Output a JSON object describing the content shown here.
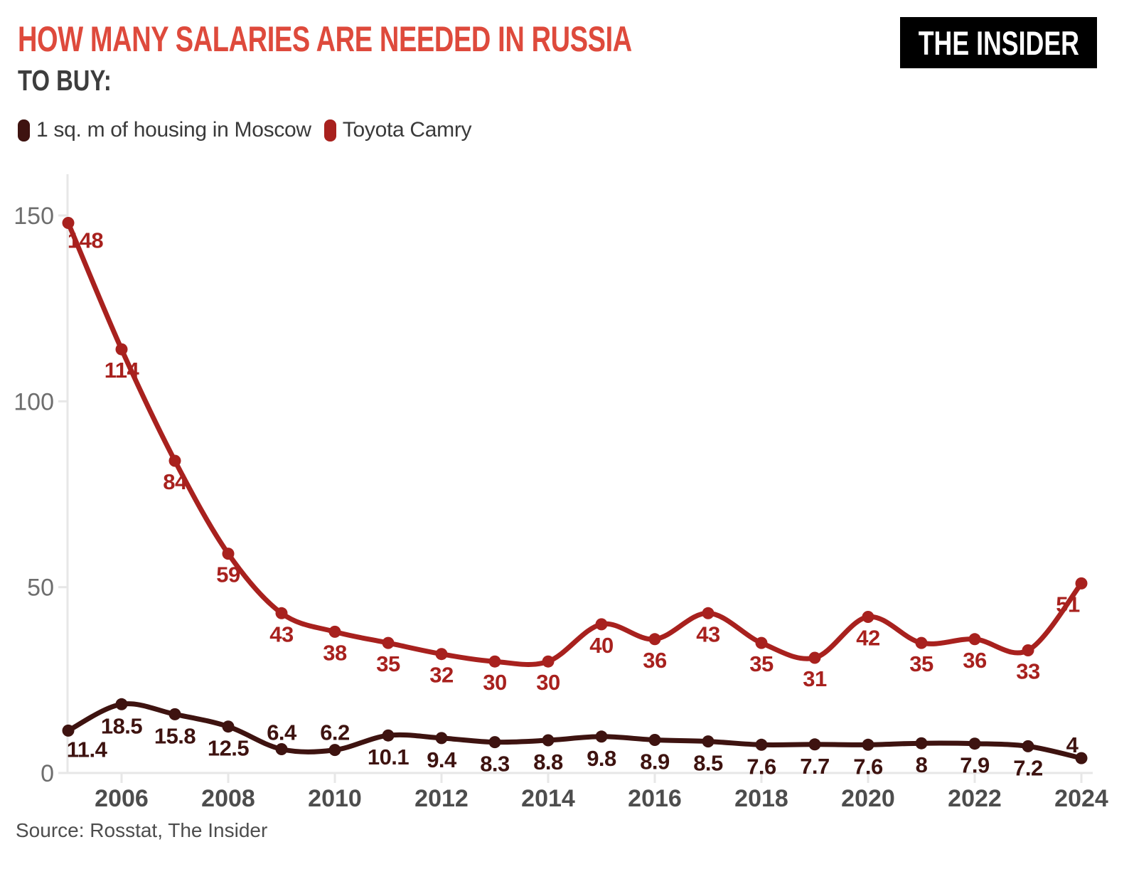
{
  "header": {
    "title": "HOW MANY SALARIES ARE NEEDED IN RUSSIA",
    "subtitle": "TO BUY:",
    "logo": "THE INSIDER"
  },
  "footer": {
    "source": "Source: Rosstat, The Insider"
  },
  "colors": {
    "title": "#DE4A3C",
    "subtitle": "#3D3D3D",
    "legend_text": "#3A3A3A",
    "axis": "#E7E7E7",
    "tick_label": "#6E6E6E",
    "year_label": "#4D4D4D",
    "source_text": "#4D4D4D",
    "logo_bg": "#000000",
    "logo_text": "#FFFFFF",
    "housing": "#3E1310",
    "camry": "#A8211E"
  },
  "chart_data": {
    "type": "line",
    "title": "HOW MANY SALARIES ARE NEEDED IN RUSSIA TO BUY:",
    "x": [
      2005,
      2006,
      2007,
      2008,
      2009,
      2010,
      2011,
      2012,
      2013,
      2014,
      2015,
      2016,
      2017,
      2018,
      2019,
      2020,
      2021,
      2022,
      2023,
      2024
    ],
    "series": [
      {
        "name": "1 sq. m of housing in Moscow",
        "color": "#3E1310",
        "values": [
          11.4,
          18.5,
          15.8,
          12.5,
          6.4,
          6.2,
          10.1,
          9.4,
          8.3,
          8.8,
          9.8,
          8.9,
          8.5,
          7.6,
          7.7,
          7.6,
          8,
          7.9,
          7.2,
          4
        ],
        "label_offset_default": [
          0,
          41
        ],
        "label_offsets": {
          "0": [
            26,
            37
          ],
          "4": [
            0,
            -13
          ],
          "5": [
            0,
            -14
          ],
          "19": [
            -13,
            -8
          ]
        }
      },
      {
        "name": "Toyota Camry",
        "color": "#A8211E",
        "values": [
          148,
          114,
          84,
          59,
          43,
          38,
          35,
          32,
          30,
          30,
          40,
          36,
          43,
          35,
          31,
          42,
          35,
          36,
          33,
          51
        ],
        "label_offset_default": [
          0,
          40
        ],
        "label_offsets": {
          "0": [
            24,
            35
          ],
          "19": [
            -19,
            40
          ]
        }
      }
    ],
    "xticks": [
      2006,
      2008,
      2010,
      2012,
      2014,
      2016,
      2018,
      2020,
      2022,
      2024
    ],
    "yticks": [
      0,
      50,
      100,
      150
    ],
    "ylim": [
      0,
      160
    ],
    "grid": false,
    "legend_position": "top-left"
  }
}
